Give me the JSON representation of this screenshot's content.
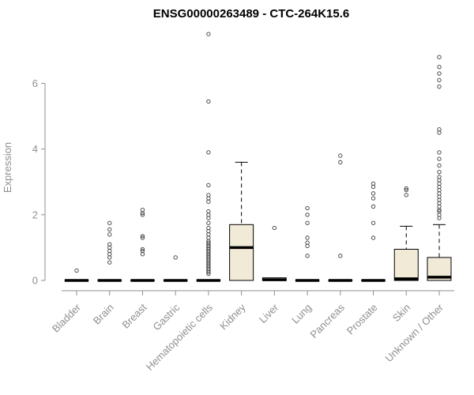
{
  "chart_data": {
    "type": "boxplot",
    "title": "ENSG00000263489 - CTC-264K15.6",
    "ylabel": "Expression",
    "xlabel": "",
    "ylim": [
      0,
      7.6
    ],
    "yticks": [
      0,
      2,
      4,
      6
    ],
    "grid": false,
    "legend": "none",
    "categories": [
      "Bladder",
      "Brain",
      "Breast",
      "Gastric",
      "Hematopoietic cells",
      "Kidney",
      "Liver",
      "Lung",
      "Pancreas",
      "Prostate",
      "Skin",
      "Unknown / Other"
    ],
    "series": [
      {
        "name": "Bladder",
        "q1": 0,
        "median": 0,
        "q3": 0,
        "whisker_low": 0,
        "whisker_high": 0,
        "outliers": [
          0.3
        ]
      },
      {
        "name": "Brain",
        "q1": 0,
        "median": 0,
        "q3": 0,
        "whisker_low": 0,
        "whisker_high": 0,
        "outliers": [
          0.55,
          0.7,
          0.8,
          0.9,
          1.0,
          1.1,
          1.4,
          1.55,
          1.75
        ]
      },
      {
        "name": "Breast",
        "q1": 0,
        "median": 0,
        "q3": 0,
        "whisker_low": 0,
        "whisker_high": 0,
        "outliers": [
          0.8,
          0.9,
          0.95,
          1.3,
          1.35,
          2.0,
          2.05,
          2.15
        ]
      },
      {
        "name": "Gastric",
        "q1": 0,
        "median": 0,
        "q3": 0,
        "whisker_low": 0,
        "whisker_high": 0,
        "outliers": [
          0.7
        ]
      },
      {
        "name": "Hematopoietic cells",
        "q1": 0,
        "median": 0,
        "q3": 0,
        "whisker_low": 0,
        "whisker_high": 0,
        "outliers": [
          0.2,
          0.25,
          0.3,
          0.35,
          0.4,
          0.45,
          0.5,
          0.55,
          0.6,
          0.65,
          0.7,
          0.75,
          0.8,
          0.85,
          0.9,
          0.95,
          1.0,
          1.05,
          1.1,
          1.15,
          1.2,
          1.3,
          1.4,
          1.5,
          1.6,
          1.75,
          1.9,
          2.0,
          2.1,
          2.4,
          2.5,
          2.6,
          2.9,
          3.9,
          5.45,
          7.5
        ]
      },
      {
        "name": "Kidney",
        "q1": 0,
        "median": 1.0,
        "q3": 1.7,
        "whisker_low": 0,
        "whisker_high": 3.6,
        "outliers": []
      },
      {
        "name": "Liver",
        "q1": 0,
        "median": 0.02,
        "q3": 0.08,
        "whisker_low": 0,
        "whisker_high": 0.08,
        "outliers": [
          1.6
        ]
      },
      {
        "name": "Lung",
        "q1": 0,
        "median": 0,
        "q3": 0,
        "whisker_low": 0,
        "whisker_high": 0,
        "outliers": [
          0.75,
          1.05,
          1.15,
          1.3,
          1.75,
          2.0,
          2.2
        ]
      },
      {
        "name": "Pancreas",
        "q1": 0,
        "median": 0,
        "q3": 0,
        "whisker_low": 0,
        "whisker_high": 0,
        "outliers": [
          0.75,
          3.6,
          3.8
        ]
      },
      {
        "name": "Prostate",
        "q1": 0,
        "median": 0,
        "q3": 0,
        "whisker_low": 0,
        "whisker_high": 0,
        "outliers": [
          1.3,
          1.75,
          2.25,
          2.5,
          2.65,
          2.85,
          2.95
        ]
      },
      {
        "name": "Skin",
        "q1": 0,
        "median": 0.05,
        "q3": 0.95,
        "whisker_low": 0,
        "whisker_high": 1.65,
        "outliers": [
          2.6,
          2.75,
          2.8
        ]
      },
      {
        "name": "Unknown / Other",
        "q1": 0,
        "median": 0.1,
        "q3": 0.7,
        "whisker_low": 0,
        "whisker_high": 1.7,
        "outliers": [
          1.9,
          2.0,
          2.1,
          2.15,
          2.25,
          2.35,
          2.45,
          2.55,
          2.65,
          2.75,
          2.85,
          2.95,
          3.05,
          3.15,
          3.3,
          3.5,
          3.7,
          3.9,
          4.5,
          4.6,
          5.9,
          6.1,
          6.3,
          6.5,
          6.8
        ]
      }
    ],
    "style": {
      "box_fill": "#f0ead6",
      "box_stroke": "#000000",
      "median_color": "#000000",
      "whisker_color": "#000000",
      "outlier_color": "#3c3c3c",
      "axis_color": "#8f8f8f",
      "title_color": "#000000",
      "background": "#ffffff"
    }
  }
}
